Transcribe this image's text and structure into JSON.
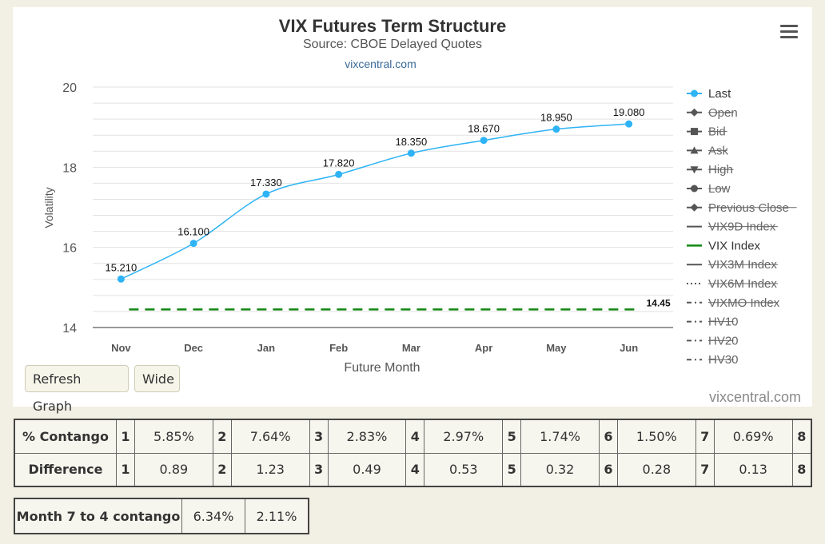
{
  "chart_data": {
    "type": "line",
    "title": "VIX Futures Term Structure",
    "subtitle": "Source: CBOE Delayed Quotes",
    "credit": "vixcentral.com",
    "xlabel": "Future Month",
    "ylabel": "Volatility",
    "categories": [
      "Nov",
      "Dec",
      "Jan",
      "Feb",
      "Mar",
      "Apr",
      "May",
      "Jun"
    ],
    "ylim": [
      14,
      20
    ],
    "yticks": [
      "20",
      "18",
      "16",
      "14"
    ],
    "grid": true,
    "legend_position": "right",
    "series": [
      {
        "name": "Last",
        "values": [
          15.21,
          16.1,
          17.33,
          17.82,
          18.35,
          18.67,
          18.95,
          19.08
        ],
        "labels": [
          "15.210",
          "16.100",
          "17.330",
          "17.820",
          "18.350",
          "18.670",
          "18.950",
          "19.080"
        ],
        "color": "#2eb3f5"
      },
      {
        "name": "VIX Index",
        "value": 14.45,
        "label": "14.45",
        "color": "#118811",
        "style": "dashed"
      }
    ],
    "legend": [
      {
        "name": "Last",
        "symbol": "circle",
        "line": "solid",
        "visible": true
      },
      {
        "name": "Open",
        "symbol": "diamond",
        "line": "solid",
        "visible": false
      },
      {
        "name": "Bid",
        "symbol": "square",
        "line": "solid",
        "visible": false
      },
      {
        "name": "Ask",
        "symbol": "triangle",
        "line": "solid",
        "visible": false
      },
      {
        "name": "High",
        "symbol": "triangle-down",
        "line": "solid",
        "visible": false
      },
      {
        "name": "Low",
        "symbol": "circle",
        "line": "solid",
        "visible": false
      },
      {
        "name": "Previous Close",
        "symbol": "diamond",
        "line": "solid",
        "visible": false
      },
      {
        "name": "VIX9D Index",
        "symbol": "none",
        "line": "solid",
        "visible": false
      },
      {
        "name": "VIX Index",
        "symbol": "none",
        "line": "solid",
        "visible": true,
        "color": "#118811"
      },
      {
        "name": "VIX3M Index",
        "symbol": "none",
        "line": "solid",
        "visible": false
      },
      {
        "name": "VIX6M Index",
        "symbol": "none",
        "line": "dotted",
        "visible": false
      },
      {
        "name": "VIXMO Index",
        "symbol": "none",
        "line": "dashdot",
        "visible": false
      },
      {
        "name": "HV10",
        "symbol": "none",
        "line": "dashdot",
        "visible": false
      },
      {
        "name": "HV20",
        "symbol": "none",
        "line": "dashdot",
        "visible": false
      },
      {
        "name": "HV30",
        "symbol": "none",
        "line": "dashdot",
        "visible": false
      }
    ]
  },
  "buttons": {
    "refresh": "Refresh Graph",
    "wide": "Wide"
  },
  "watermark": "vixcentral.com",
  "contango": {
    "label": "% Contango",
    "cells": [
      "1",
      "5.85%",
      "2",
      "7.64%",
      "3",
      "2.83%",
      "4",
      "2.97%",
      "5",
      "1.74%",
      "6",
      "1.50%",
      "7",
      "0.69%",
      "8"
    ]
  },
  "difference": {
    "label": "Difference",
    "cells": [
      "1",
      "0.89",
      "2",
      "1.23",
      "3",
      "0.49",
      "4",
      "0.53",
      "5",
      "0.32",
      "6",
      "0.28",
      "7",
      "0.13",
      "8"
    ]
  },
  "month_contango": {
    "label": "Month 7 to 4 contango",
    "values": [
      "6.34%",
      "2.11%"
    ]
  }
}
